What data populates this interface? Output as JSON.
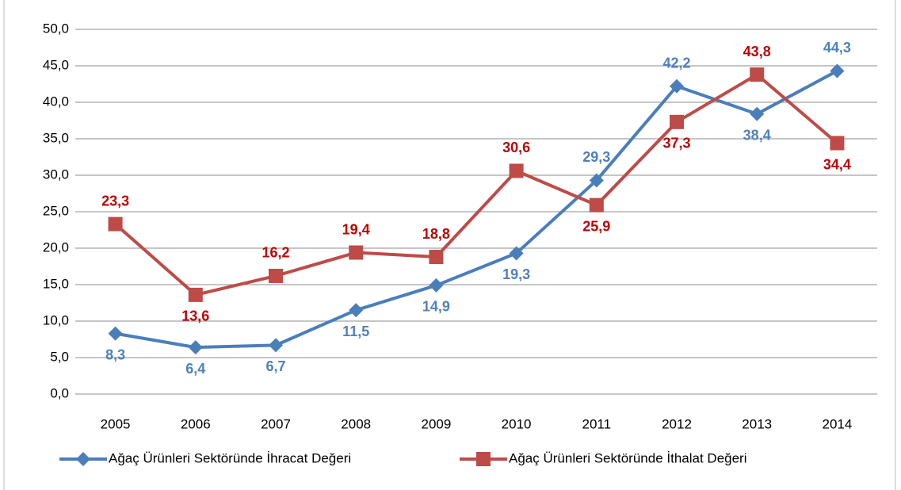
{
  "chart_data": {
    "type": "line",
    "categories": [
      "2005",
      "2006",
      "2007",
      "2008",
      "2009",
      "2010",
      "2011",
      "2012",
      "2013",
      "2014"
    ],
    "series": [
      {
        "name": "Ağaç Ürünleri Sektöründe İhracat Değeri",
        "color": "#4a7ebb",
        "values": [
          8.3,
          6.4,
          6.7,
          11.5,
          14.9,
          19.3,
          29.3,
          42.2,
          38.4,
          44.3
        ],
        "value_labels": [
          "8,3",
          "6,4",
          "6,7",
          "11,5",
          "14,9",
          "19,3",
          "29,3",
          "42,2",
          "38,4",
          "44,3"
        ]
      },
      {
        "name": "Ağaç Ürünleri Sektöründe İthalat Değeri",
        "color": "#be4b48",
        "values": [
          23.3,
          13.6,
          16.2,
          19.4,
          18.8,
          30.6,
          25.9,
          37.3,
          43.8,
          34.4
        ],
        "value_labels": [
          "23,3",
          "13,6",
          "16,2",
          "19,4",
          "18,8",
          "30,6",
          "25,9",
          "37,3",
          "43,8",
          "34,4"
        ]
      }
    ],
    "ylim": [
      0,
      50
    ],
    "yticks": [
      {
        "value": 0,
        "label": "0,0"
      },
      {
        "value": 5,
        "label": "5,0"
      },
      {
        "value": 10,
        "label": "10,0"
      },
      {
        "value": 15,
        "label": "15,0"
      },
      {
        "value": 20,
        "label": "20,0"
      },
      {
        "value": 25,
        "label": "25,0"
      },
      {
        "value": 30,
        "label": "30,0"
      },
      {
        "value": 35,
        "label": "35,0"
      },
      {
        "value": 40,
        "label": "40,0"
      },
      {
        "value": 45,
        "label": "45,0"
      },
      {
        "value": 50,
        "label": "50,0"
      }
    ],
    "grid": true,
    "legend": "bottom"
  }
}
